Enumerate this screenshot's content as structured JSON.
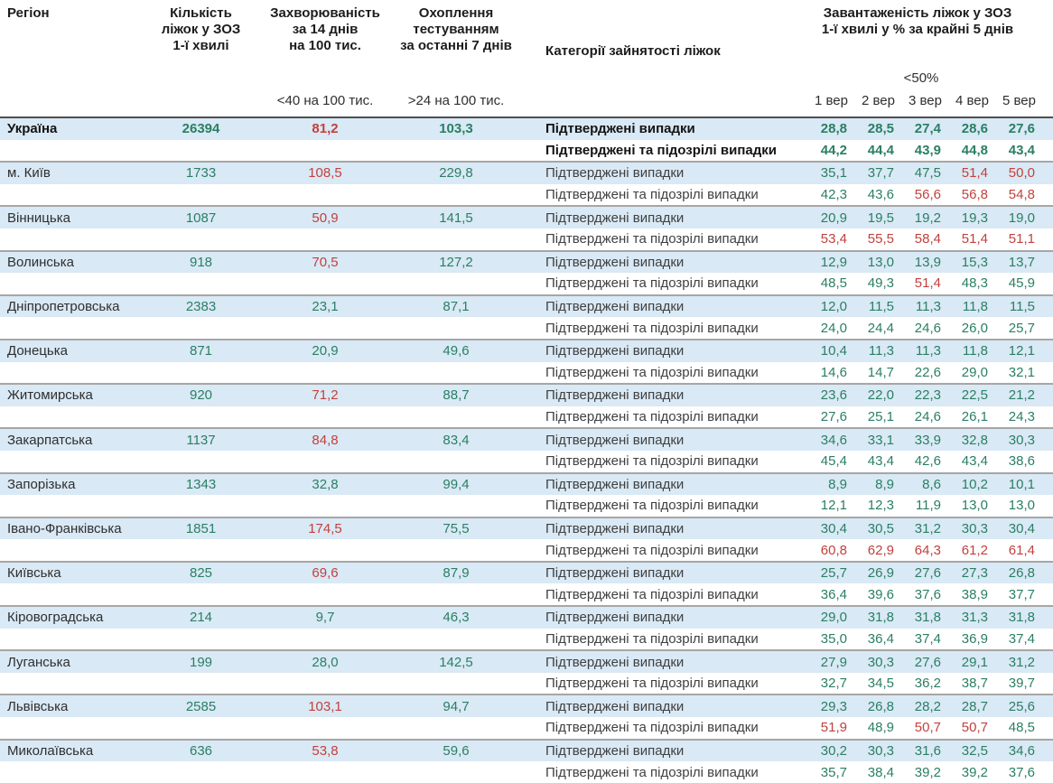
{
  "colors": {
    "value_green": "#2a7f63",
    "value_red": "#c2413d",
    "row_highlight_blue": "#d9e9f5",
    "block_border_gray": "#a6a6a6",
    "emphasis_border_dark": "#4f4f4f"
  },
  "header": {
    "region": "Регіон",
    "beds_lines": [
      "Кількість",
      "ліжок у ЗОЗ",
      "1-ї хвилі"
    ],
    "incidence_lines": [
      "Захворюваність",
      "за 14 днів",
      "на 100 тис."
    ],
    "testing_lines": [
      "Охоплення",
      "тестуванням",
      "за останні 7 днів"
    ],
    "categories": "Категорії зайнятості ліжок",
    "load_lines": [
      "Завантаженість ліжок у ЗОЗ",
      "1-ї хвилі у % за крайні 5 днів"
    ],
    "incidence_threshold_label": "<40 на 100 тис.",
    "testing_threshold_label": ">24 на 100 тис.",
    "load_threshold_label": "<50%",
    "dates": [
      "1 вер",
      "2 вер",
      "3 вер",
      "4 вер",
      "5 вер"
    ]
  },
  "thresholds": {
    "incidence_red_at": 40,
    "testing_green_above": 24,
    "load_red_at": 50
  },
  "category_labels": {
    "confirmed": "Підтверджені випадки",
    "confirmed_suspected": "Підтверджені та підозрілі випадки"
  },
  "rows": [
    {
      "region": "Україна",
      "beds": "26394",
      "incidence": "81,2",
      "testing": "103,3",
      "confirmed": [
        "28,8",
        "28,5",
        "27,4",
        "28,6",
        "27,6"
      ],
      "confirmed_suspected": [
        "44,2",
        "44,4",
        "43,9",
        "44,8",
        "43,4"
      ],
      "emphasis": true
    },
    {
      "region": "м. Київ",
      "beds": "1733",
      "incidence": "108,5",
      "testing": "229,8",
      "confirmed": [
        "35,1",
        "37,7",
        "47,5",
        "51,4",
        "50,0"
      ],
      "confirmed_suspected": [
        "42,3",
        "43,6",
        "56,6",
        "56,8",
        "54,8"
      ],
      "emphasis": false
    },
    {
      "region": "Вінницька",
      "beds": "1087",
      "incidence": "50,9",
      "testing": "141,5",
      "confirmed": [
        "20,9",
        "19,5",
        "19,2",
        "19,3",
        "19,0"
      ],
      "confirmed_suspected": [
        "53,4",
        "55,5",
        "58,4",
        "51,4",
        "51,1"
      ],
      "emphasis": false
    },
    {
      "region": "Волинська",
      "beds": "918",
      "incidence": "70,5",
      "testing": "127,2",
      "confirmed": [
        "12,9",
        "13,0",
        "13,9",
        "15,3",
        "13,7"
      ],
      "confirmed_suspected": [
        "48,5",
        "49,3",
        "51,4",
        "48,3",
        "45,9"
      ],
      "emphasis": false
    },
    {
      "region": "Дніпропетровська",
      "beds": "2383",
      "incidence": "23,1",
      "testing": "87,1",
      "confirmed": [
        "12,0",
        "11,5",
        "11,3",
        "11,8",
        "11,5"
      ],
      "confirmed_suspected": [
        "24,0",
        "24,4",
        "24,6",
        "26,0",
        "25,7"
      ],
      "emphasis": false
    },
    {
      "region": "Донецька",
      "beds": "871",
      "incidence": "20,9",
      "testing": "49,6",
      "confirmed": [
        "10,4",
        "11,3",
        "11,3",
        "11,8",
        "12,1"
      ],
      "confirmed_suspected": [
        "14,6",
        "14,7",
        "22,6",
        "29,0",
        "32,1"
      ],
      "emphasis": false
    },
    {
      "region": "Житомирська",
      "beds": "920",
      "incidence": "71,2",
      "testing": "88,7",
      "confirmed": [
        "23,6",
        "22,0",
        "22,3",
        "22,5",
        "21,2"
      ],
      "confirmed_suspected": [
        "27,6",
        "25,1",
        "24,6",
        "26,1",
        "24,3"
      ],
      "emphasis": false
    },
    {
      "region": "Закарпатська",
      "beds": "1137",
      "incidence": "84,8",
      "testing": "83,4",
      "confirmed": [
        "34,6",
        "33,1",
        "33,9",
        "32,8",
        "30,3"
      ],
      "confirmed_suspected": [
        "45,4",
        "43,4",
        "42,6",
        "43,4",
        "38,6"
      ],
      "emphasis": false
    },
    {
      "region": "Запорізька",
      "beds": "1343",
      "incidence": "32,8",
      "testing": "99,4",
      "confirmed": [
        "8,9",
        "8,9",
        "8,6",
        "10,2",
        "10,1"
      ],
      "confirmed_suspected": [
        "12,1",
        "12,3",
        "11,9",
        "13,0",
        "13,0"
      ],
      "emphasis": false
    },
    {
      "region": "Івано-Франківська",
      "beds": "1851",
      "incidence": "174,5",
      "testing": "75,5",
      "confirmed": [
        "30,4",
        "30,5",
        "31,2",
        "30,3",
        "30,4"
      ],
      "confirmed_suspected": [
        "60,8",
        "62,9",
        "64,3",
        "61,2",
        "61,4"
      ],
      "emphasis": false
    },
    {
      "region": "Київська",
      "beds": "825",
      "incidence": "69,6",
      "testing": "87,9",
      "confirmed": [
        "25,7",
        "26,9",
        "27,6",
        "27,3",
        "26,8"
      ],
      "confirmed_suspected": [
        "36,4",
        "39,6",
        "37,6",
        "38,9",
        "37,7"
      ],
      "emphasis": false
    },
    {
      "region": "Кіровоградська",
      "beds": "214",
      "incidence": "9,7",
      "testing": "46,3",
      "confirmed": [
        "29,0",
        "31,8",
        "31,8",
        "31,3",
        "31,8"
      ],
      "confirmed_suspected": [
        "35,0",
        "36,4",
        "37,4",
        "36,9",
        "37,4"
      ],
      "emphasis": false
    },
    {
      "region": "Луганська",
      "beds": "199",
      "incidence": "28,0",
      "testing": "142,5",
      "confirmed": [
        "27,9",
        "30,3",
        "27,6",
        "29,1",
        "31,2"
      ],
      "confirmed_suspected": [
        "32,7",
        "34,5",
        "36,2",
        "38,7",
        "39,7"
      ],
      "emphasis": false
    },
    {
      "region": "Львівська",
      "beds": "2585",
      "incidence": "103,1",
      "testing": "94,7",
      "confirmed": [
        "29,3",
        "26,8",
        "28,2",
        "28,7",
        "25,6"
      ],
      "confirmed_suspected": [
        "51,9",
        "48,9",
        "50,7",
        "50,7",
        "48,5"
      ],
      "emphasis": false
    },
    {
      "region": "Миколаївська",
      "beds": "636",
      "incidence": "53,8",
      "testing": "59,6",
      "confirmed": [
        "30,2",
        "30,3",
        "31,6",
        "32,5",
        "34,6"
      ],
      "confirmed_suspected": [
        "35,7",
        "38,4",
        "39,2",
        "39,2",
        "37,6"
      ],
      "emphasis": false
    }
  ]
}
